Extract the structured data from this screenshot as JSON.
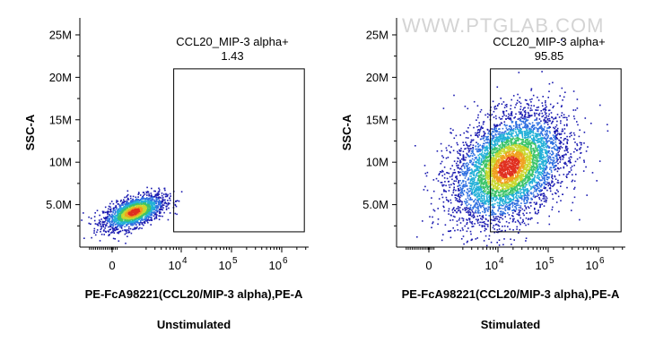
{
  "watermark": "WWW.PTGLAB.COM",
  "colors": {
    "axis": "#000000",
    "gate": "#000000",
    "density": [
      "#1a1ab0",
      "#2e6fe0",
      "#22b0d8",
      "#3cc46a",
      "#c8d830",
      "#f0a020",
      "#e03020"
    ]
  },
  "chart_data": [
    {
      "type": "scatter",
      "subtype": "flow-cytometry-density-dot-plot",
      "title": "",
      "xlabel": "PE-FcA98221(CCL20/MIP-3 alpha),PE-A",
      "ylabel": "SSC-A",
      "caption": "Unstimulated",
      "x_scale": "biexponential",
      "x_tick_labels": [
        {
          "label": "0",
          "exp": ""
        },
        {
          "label": "10",
          "exp": "4"
        },
        {
          "label": "10",
          "exp": "5"
        },
        {
          "label": "10",
          "exp": "6"
        }
      ],
      "y_tick_labels": [
        "5.0M",
        "10M",
        "15M",
        "20M",
        "25M"
      ],
      "y_ticks": [
        5000000,
        10000000,
        15000000,
        20000000,
        25000000
      ],
      "ylim": [
        0,
        27000000
      ],
      "gate": {
        "name": "CCL20_MIP-3 alpha+",
        "percent": "1.43",
        "x_range_decades": [
          3.85,
          6.45
        ],
        "y_range": [
          1800000,
          21000000
        ]
      },
      "population": {
        "center_log_x": 3.05,
        "center_y": 4200000,
        "spread_log_x": 0.3,
        "spread_y": 1000000,
        "events": 1900
      },
      "grid": false
    },
    {
      "type": "scatter",
      "subtype": "flow-cytometry-density-dot-plot",
      "title": "",
      "xlabel": "PE-FcA98221(CCL20/MIP-3 alpha),PE-A",
      "ylabel": "SSC-A",
      "caption": "Stimulated",
      "x_scale": "biexponential",
      "x_tick_labels": [
        {
          "label": "0",
          "exp": ""
        },
        {
          "label": "10",
          "exp": "4"
        },
        {
          "label": "10",
          "exp": "5"
        },
        {
          "label": "10",
          "exp": "6"
        }
      ],
      "y_tick_labels": [
        "5.0M",
        "10M",
        "15M",
        "20M",
        "25M"
      ],
      "y_ticks": [
        5000000,
        10000000,
        15000000,
        20000000,
        25000000
      ],
      "ylim": [
        0,
        27000000
      ],
      "gate": {
        "name": "CCL20_MIP-3 alpha+",
        "percent": "95.85",
        "x_range_decades": [
          3.85,
          6.45
        ],
        "y_range": [
          1800000,
          21000000
        ]
      },
      "population": {
        "center_log_x": 4.2,
        "center_y": 9500000,
        "spread_log_x": 0.55,
        "spread_y": 3200000,
        "events": 5200
      },
      "grid": false
    }
  ]
}
